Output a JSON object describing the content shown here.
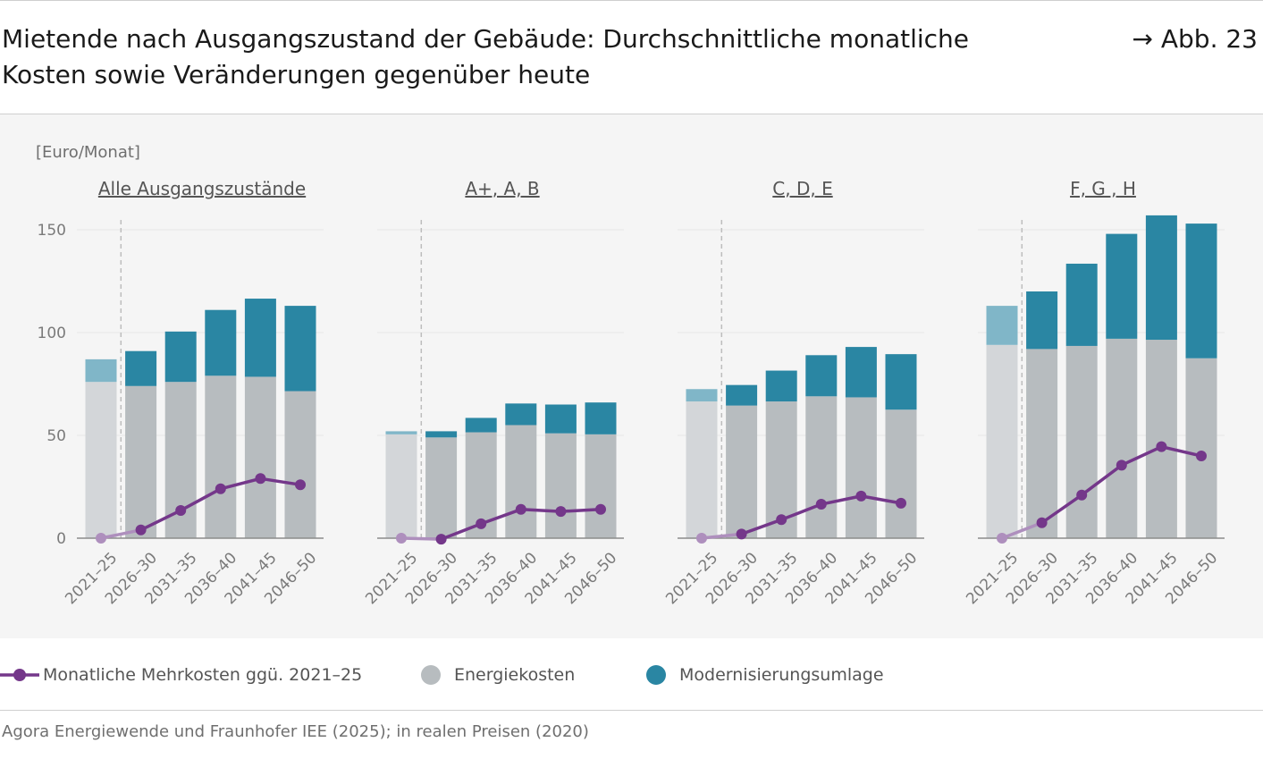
{
  "title_line1": "Mietende nach Ausgangszustand der Gebäude: Durchschnittliche monatliche",
  "title_line2": "Kosten sowie Veränderungen gegenüber heute",
  "figure_ref": "→ Abb. 23",
  "source": "Agora Energiewende und Fraunhofer IEE (2025); in realen Preisen (2020)",
  "colors": {
    "energy": "#b7bcbf",
    "energy_light": "#d3d6d9",
    "modern": "#2a86a3",
    "modern_light": "#80b6c8",
    "line": "#74378a",
    "line_light": "#ae8fbd",
    "grid": "#e6e6e6",
    "axis": "#8c8c8c"
  },
  "legend": {
    "line_label": "Monatliche Mehrkosten ggü. 2021–25",
    "energy_label": "Energiekosten",
    "modern_label": "Modernisierungsumlage"
  },
  "chart_data": {
    "type": "bar",
    "unit_label": "[Euro/Monat]",
    "ylim": [
      0,
      160
    ],
    "yticks": [
      0,
      50,
      100,
      150
    ],
    "categories": [
      "2021–25",
      "2026–30",
      "2031–35",
      "2036–40",
      "2041–45",
      "2046–50"
    ],
    "panels": [
      {
        "title": "Alle Ausgangszustände",
        "series": [
          {
            "name": "Energiekosten",
            "values": [
              76,
              74,
              76,
              79,
              78.5,
              71.5
            ]
          },
          {
            "name": "Modernisierungsumlage",
            "values": [
              11,
              17,
              24.5,
              32,
              38,
              41.5
            ]
          },
          {
            "name": "Monatliche Mehrkosten ggü. 2021–25",
            "values": [
              0,
              4,
              13.5,
              24,
              29,
              26
            ]
          }
        ]
      },
      {
        "title": "A+, A, B",
        "series": [
          {
            "name": "Energiekosten",
            "values": [
              50.5,
              49,
              51.5,
              55,
              51,
              50.5
            ]
          },
          {
            "name": "Modernisierungsumlage",
            "values": [
              1.5,
              3,
              7,
              10.5,
              14,
              15.5
            ]
          },
          {
            "name": "Monatliche Mehrkosten ggü. 2021–25",
            "values": [
              0,
              -0.5,
              7,
              14,
              13,
              14
            ]
          }
        ]
      },
      {
        "title": "C, D, E",
        "series": [
          {
            "name": "Energiekosten",
            "values": [
              66.5,
              64.5,
              66.5,
              69,
              68.5,
              62.5
            ]
          },
          {
            "name": "Modernisierungsumlage",
            "values": [
              6,
              10,
              15,
              20,
              24.5,
              27
            ]
          },
          {
            "name": "Monatliche Mehrkosten ggü. 2021–25",
            "values": [
              0,
              2,
              9,
              16.5,
              20.5,
              17
            ]
          }
        ]
      },
      {
        "title": "F, G , H",
        "series": [
          {
            "name": "Energiekosten",
            "values": [
              94,
              92,
              93.5,
              97,
              96.5,
              87.5
            ]
          },
          {
            "name": "Modernisierungsumlage",
            "values": [
              19,
              28,
              40,
              51,
              60.5,
              65.5
            ]
          },
          {
            "name": "Monatliche Mehrkosten ggü. 2021–25",
            "values": [
              0,
              7.5,
              21,
              35.5,
              44.5,
              40
            ]
          }
        ]
      }
    ],
    "grid": true,
    "historical_divider_after_category": 0,
    "legend_position": "bottom"
  }
}
